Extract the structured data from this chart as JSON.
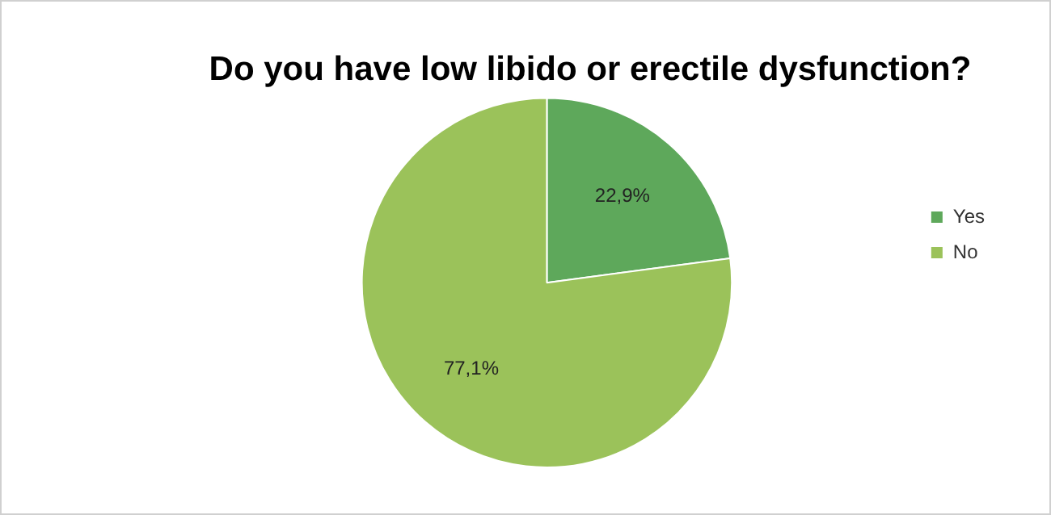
{
  "chart_data": {
    "type": "pie",
    "title": "Do you have low libido or erectile dysfunction?",
    "categories": [
      "Yes",
      "No"
    ],
    "values": [
      22.9,
      77.1
    ],
    "value_labels": [
      "22,9%",
      "77,1%"
    ],
    "colors": [
      "#5ea85b",
      "#9bc25a"
    ],
    "legend": "right"
  }
}
